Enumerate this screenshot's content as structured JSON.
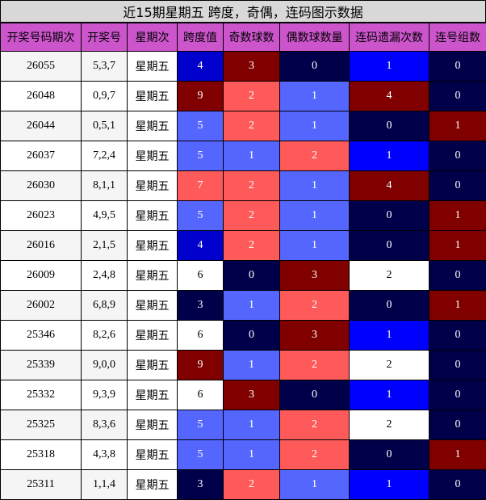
{
  "title": "近15期星期五 跨度，奇偶，连码图示数据",
  "columns": [
    "开奖号码期次",
    "开奖号",
    "星期次",
    "跨度值",
    "奇数球数",
    "偶数球数量",
    "连码遗漏次数",
    "连号组数"
  ],
  "palette": {
    "header_bg": "#cc55cc",
    "span": {
      "3": "#00004a",
      "4": "#0000cc",
      "5": "#5566ff",
      "6": "#ffffff",
      "7": "#ff5a5a",
      "9": "#800000"
    },
    "odd": {
      "0": "#00004a",
      "1": "#5566ff",
      "2": "#ff5a5a",
      "3": "#800000"
    },
    "even": {
      "0": "#00004a",
      "1": "#5566ff",
      "2": "#ff5a5a",
      "3": "#800000"
    },
    "gap": {
      "0": "#00004a",
      "1": "#0000ff",
      "2": "#ffffff",
      "4": "#800000"
    },
    "consec": {
      "0": "#00004a",
      "1": "#800000"
    }
  },
  "chart_data": {
    "type": "table",
    "title": "近15期星期五 跨度，奇偶，连码图示数据",
    "columns": [
      "开奖号码期次",
      "开奖号",
      "星期次",
      "跨度值",
      "奇数球数",
      "偶数球数量",
      "连码遗漏次数",
      "连号组数"
    ],
    "rows": [
      {
        "issue": "26055",
        "numbers": "5,3,7",
        "weekday": "星期五",
        "span": 4,
        "odd": 3,
        "even": 0,
        "gap": 1,
        "consec": 0
      },
      {
        "issue": "26048",
        "numbers": "0,9,7",
        "weekday": "星期五",
        "span": 9,
        "odd": 2,
        "even": 1,
        "gap": 4,
        "consec": 0
      },
      {
        "issue": "26044",
        "numbers": "0,5,1",
        "weekday": "星期五",
        "span": 5,
        "odd": 2,
        "even": 1,
        "gap": 0,
        "consec": 1
      },
      {
        "issue": "26037",
        "numbers": "7,2,4",
        "weekday": "星期五",
        "span": 5,
        "odd": 1,
        "even": 2,
        "gap": 1,
        "consec": 0
      },
      {
        "issue": "26030",
        "numbers": "8,1,1",
        "weekday": "星期五",
        "span": 7,
        "odd": 2,
        "even": 1,
        "gap": 4,
        "consec": 0
      },
      {
        "issue": "26023",
        "numbers": "4,9,5",
        "weekday": "星期五",
        "span": 5,
        "odd": 2,
        "even": 1,
        "gap": 0,
        "consec": 1
      },
      {
        "issue": "26016",
        "numbers": "2,1,5",
        "weekday": "星期五",
        "span": 4,
        "odd": 2,
        "even": 1,
        "gap": 0,
        "consec": 1
      },
      {
        "issue": "26009",
        "numbers": "2,4,8",
        "weekday": "星期五",
        "span": 6,
        "odd": 0,
        "even": 3,
        "gap": 2,
        "consec": 0
      },
      {
        "issue": "26002",
        "numbers": "6,8,9",
        "weekday": "星期五",
        "span": 3,
        "odd": 1,
        "even": 2,
        "gap": 0,
        "consec": 1
      },
      {
        "issue": "25346",
        "numbers": "8,2,6",
        "weekday": "星期五",
        "span": 6,
        "odd": 0,
        "even": 3,
        "gap": 1,
        "consec": 0
      },
      {
        "issue": "25339",
        "numbers": "9,0,0",
        "weekday": "星期五",
        "span": 9,
        "odd": 1,
        "even": 2,
        "gap": 2,
        "consec": 0
      },
      {
        "issue": "25332",
        "numbers": "9,3,9",
        "weekday": "星期五",
        "span": 6,
        "odd": 3,
        "even": 0,
        "gap": 1,
        "consec": 0
      },
      {
        "issue": "25325",
        "numbers": "8,3,6",
        "weekday": "星期五",
        "span": 5,
        "odd": 1,
        "even": 2,
        "gap": 2,
        "consec": 0
      },
      {
        "issue": "25318",
        "numbers": "4,3,8",
        "weekday": "星期五",
        "span": 5,
        "odd": 1,
        "even": 2,
        "gap": 0,
        "consec": 1
      },
      {
        "issue": "25311",
        "numbers": "1,1,4",
        "weekday": "星期五",
        "span": 3,
        "odd": 2,
        "even": 1,
        "gap": 1,
        "consec": 0
      }
    ]
  }
}
